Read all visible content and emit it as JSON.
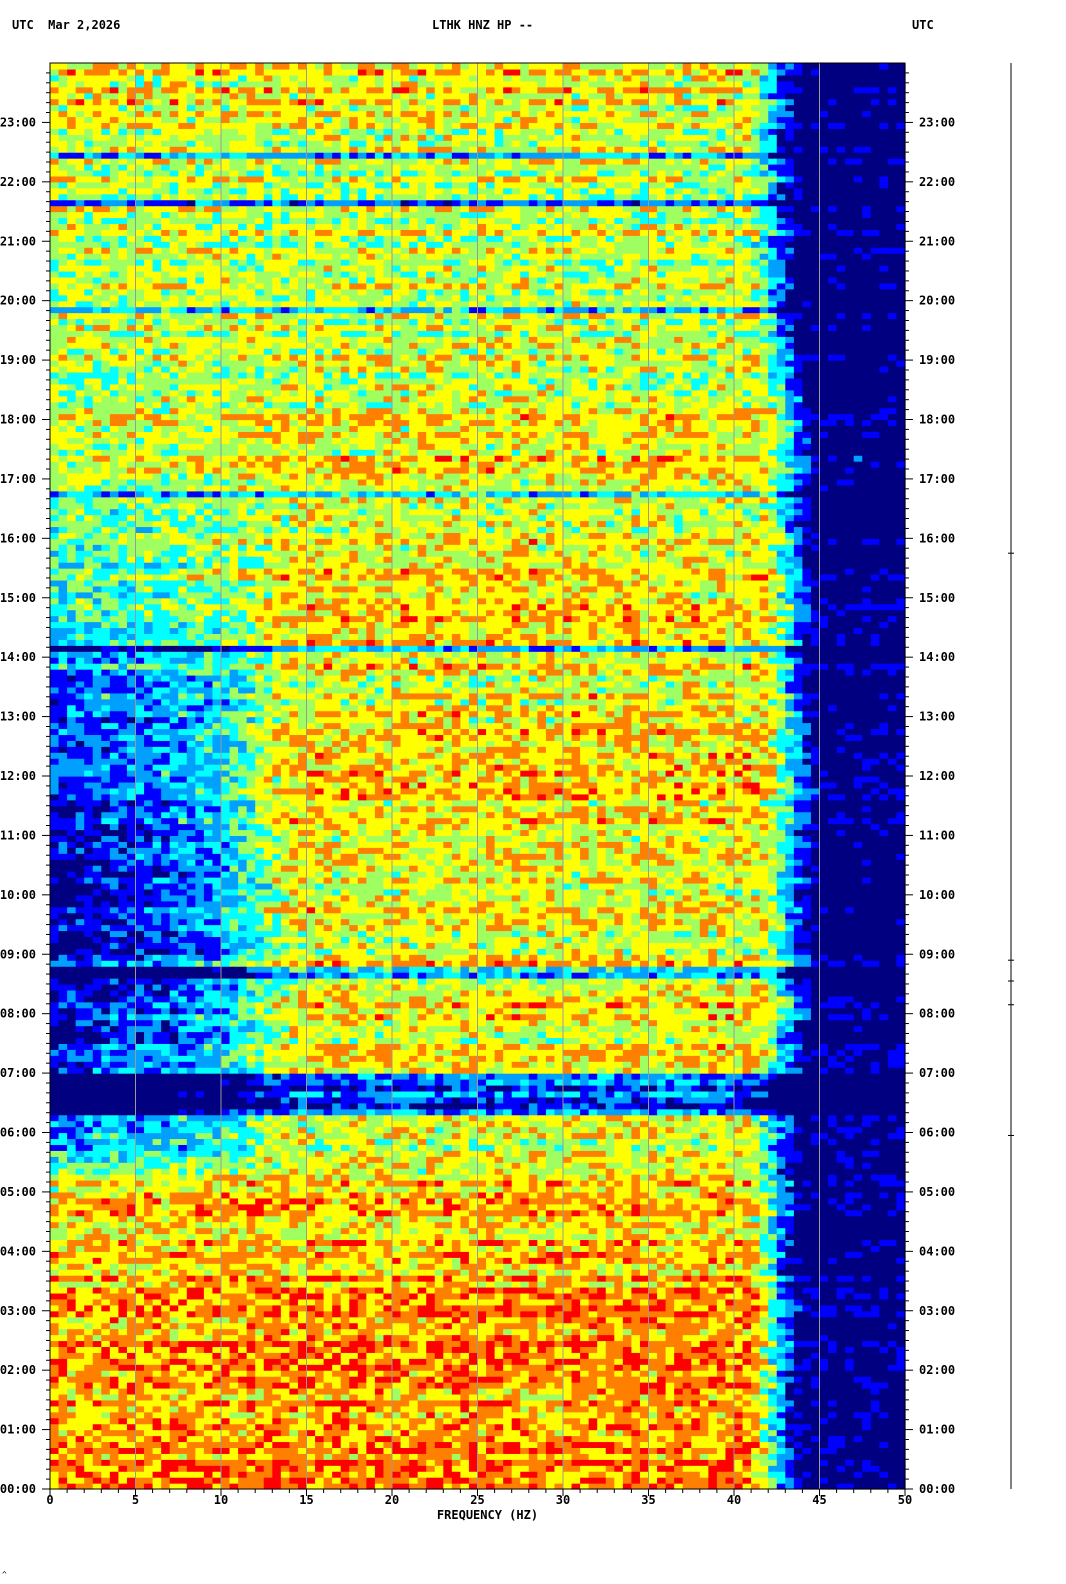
{
  "header": {
    "left": "UTC  Mar 2,2026",
    "center": "LTHK HNZ HP --",
    "right": "UTC"
  },
  "chart_data": {
    "type": "heatmap",
    "title": "LTHK HNZ HP --",
    "date": "Mar 2,2026",
    "xlabel": "FREQUENCY (HZ)",
    "ylabel_left": "UTC",
    "ylabel_right": "UTC",
    "xlim": [
      0,
      50
    ],
    "ylim_hours": [
      0,
      24
    ],
    "x_ticks": [
      "0",
      "5",
      "10",
      "15",
      "20",
      "25",
      "30",
      "35",
      "40",
      "45",
      "50"
    ],
    "y_ticks": [
      "00:00",
      "01:00",
      "02:00",
      "03:00",
      "04:00",
      "05:00",
      "06:00",
      "07:00",
      "08:00",
      "09:00",
      "10:00",
      "11:00",
      "12:00",
      "13:00",
      "14:00",
      "15:00",
      "16:00",
      "17:00",
      "18:00",
      "19:00",
      "20:00",
      "21:00",
      "22:00",
      "23:00"
    ],
    "grid": true,
    "grid_x_at_hz": [
      5,
      10,
      15,
      20,
      25,
      30,
      35,
      40,
      45
    ],
    "colormap": [
      "#000080",
      "#0000ff",
      "#00a0ff",
      "#00ffff",
      "#a0ff60",
      "#ffff00",
      "#ff8000",
      "#ff0000"
    ],
    "power_profile": {
      "note_hours": [
        0,
        3,
        5,
        6,
        7,
        8,
        10,
        12,
        14,
        16,
        18,
        20,
        22,
        24
      ],
      "low_freq_level": [
        0.78,
        0.75,
        0.7,
        0.25,
        0.12,
        0.12,
        0.12,
        0.14,
        0.3,
        0.55,
        0.6,
        0.62,
        0.64,
        0.7
      ],
      "mid_freq_level": [
        0.8,
        0.78,
        0.72,
        0.6,
        0.62,
        0.68,
        0.7,
        0.7,
        0.68,
        0.68,
        0.66,
        0.64,
        0.62,
        0.72
      ],
      "rolloff_hz": [
        43,
        43,
        43,
        43,
        43,
        44,
        44,
        44,
        44,
        44,
        44,
        43,
        43,
        43
      ],
      "quiet_band_hours": [
        [
          6.3,
          7.0
        ],
        [
          8.65,
          8.75
        ],
        [
          14.1,
          14.15
        ],
        [
          16.7,
          16.8
        ],
        [
          21.6,
          21.7
        ],
        [
          22.4,
          22.45
        ],
        [
          19.8,
          19.85
        ]
      ]
    }
  }
}
